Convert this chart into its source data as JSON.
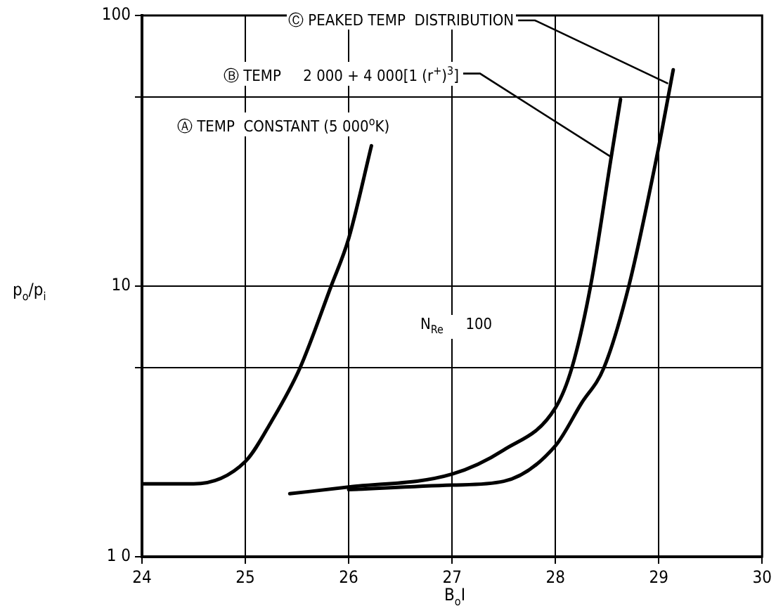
{
  "chart_data": {
    "type": "line",
    "xlabel": "B$_{o}$I",
    "ylabel": "p$_{o}$/p$_{i}$",
    "xlim": [
      24,
      30
    ],
    "xticks": [
      24,
      25,
      26,
      27,
      28,
      29,
      30
    ],
    "ylim": [
      1,
      100
    ],
    "yticks": [
      {
        "value": 1,
        "label": "1 0"
      },
      {
        "value": 5,
        "label": null
      },
      10,
      {
        "value": 50,
        "label": null
      },
      100
    ],
    "log": "y",
    "grid": true,
    "legend": false,
    "marker": "none",
    "line_style": "solid",
    "series": [
      {
        "color": "#000000",
        "x": [
          24,
          24.5,
          25,
          25.25,
          25.53,
          25.83,
          26,
          26.22
        ],
        "values": [
          1.86,
          1.86,
          2.25,
          3.15,
          5,
          10,
          15,
          33
        ]
      },
      {
        "color": "#000000",
        "x": [
          25.43,
          26,
          27,
          27.5,
          28,
          28.16,
          28.34,
          28.54,
          28.63
        ],
        "values": [
          1.71,
          1.81,
          2.02,
          2.48,
          3.55,
          5,
          10,
          30,
          49
        ]
      },
      {
        "color": "#000000",
        "x": [
          26,
          27,
          27.5,
          28,
          28.25,
          28.47,
          28.71,
          28.98,
          29.14
        ],
        "values": [
          1.77,
          1.84,
          1.9,
          2.57,
          3.68,
          5,
          10,
          30,
          63
        ]
      }
    ],
    "annotations": [
      {
        "text": "Ⓒ PEAKED TEMP  DISTRIBUTION",
        "x": 29.09,
        "y": 56
      },
      {
        "text": "Ⓑ TEMP     2 000 + 4 000[1 (r$^{+}$)$^{3}$]",
        "x": 28.54,
        "y": 30
      },
      "Ⓐ TEMP  CONSTANT (5 000$^{o}$K)",
      "N$_{Re}$     100"
    ]
  }
}
